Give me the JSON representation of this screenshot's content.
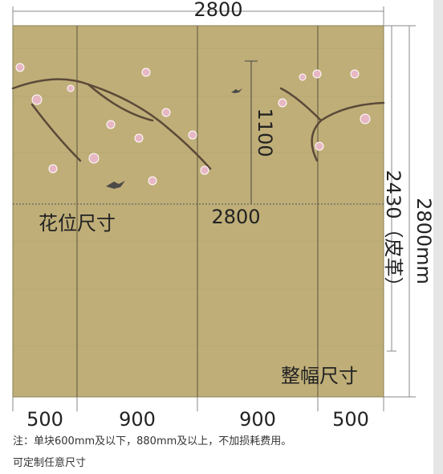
{
  "dimensions": {
    "top_width": "2800",
    "flower_height": "1100",
    "flower_width": "2800",
    "flower_label": "花位尺寸",
    "full_label": "整幅尺寸",
    "leather_height": "2430（皮革）",
    "total_height": "2800mm",
    "segments": [
      "500",
      "900",
      "900",
      "500"
    ]
  },
  "notes": [
    "注：单块600mm及以下，880mm及以上，不加损耗费用。",
    "可定制任意尺寸"
  ]
}
